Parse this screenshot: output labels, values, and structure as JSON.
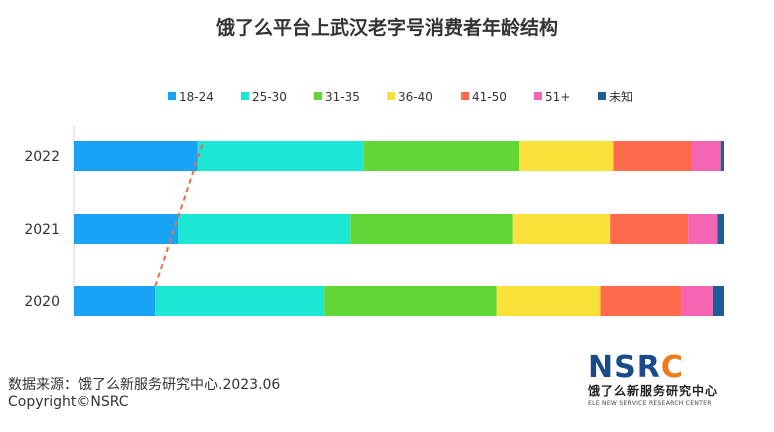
{
  "chart_data": {
    "type": "bar",
    "orientation": "horizontal",
    "stacked": true,
    "percent_stacked": true,
    "title": "饿了么平台上武汉老字号消费者年龄结构",
    "categories": [
      "2022",
      "2021",
      "2020"
    ],
    "series": [
      {
        "name": "18-24",
        "color": "#1aa3f5",
        "values": [
          19,
          16,
          12.5
        ]
      },
      {
        "name": "25-30",
        "color": "#1ce6d4",
        "values": [
          25.5,
          26.5,
          26
        ]
      },
      {
        "name": "31-35",
        "color": "#62d838",
        "values": [
          24,
          25,
          26.5
        ]
      },
      {
        "name": "36-40",
        "color": "#fbe23a",
        "values": [
          14.5,
          15,
          16
        ]
      },
      {
        "name": "41-50",
        "color": "#ff6a4d",
        "values": [
          12,
          12,
          12.5
        ]
      },
      {
        "name": "51+",
        "color": "#f466b4",
        "values": [
          4.5,
          4.5,
          4.8
        ]
      },
      {
        "name": "未知",
        "color": "#1b5f96",
        "values": [
          0.5,
          1,
          1.7
        ]
      }
    ],
    "legend_position": "top",
    "grid": false,
    "annotation": {
      "type": "trend-line",
      "style": "dashed",
      "color": "#ef6a4a"
    }
  },
  "footer": {
    "source": "数据来源：饿了么新服务研究中心.2023.06",
    "copyright": "Copyright©NSRC"
  },
  "logo": {
    "letters_a": "NSR",
    "letters_b": "C",
    "cn_name": "饿了么新服务研究中心",
    "en_name": "ELE NEW SERVICE RESEARCH CENTER"
  }
}
